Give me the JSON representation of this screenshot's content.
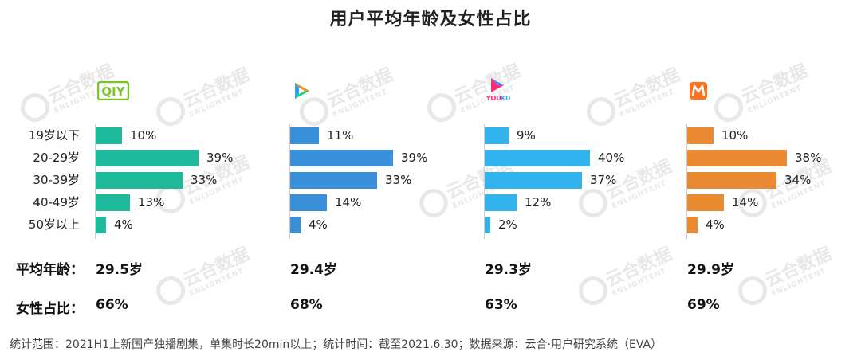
{
  "title": "用户平均年龄及女性占比",
  "watermark": {
    "cn": "云合数据",
    "en": "ENLIGHTENT"
  },
  "categories": [
    "19岁以下",
    "20-29岁",
    "30-39岁",
    "40-49岁",
    "50岁以上"
  ],
  "platforms": [
    {
      "logo_icon": "iqiyi-logo-icon",
      "logo_text": "QIY",
      "color": "#1db99a",
      "values": [
        10,
        39,
        33,
        13,
        4
      ],
      "labels": [
        "10%",
        "39%",
        "33%",
        "13%",
        "4%"
      ],
      "avg_age": "29.5岁",
      "female_ratio": "66%"
    },
    {
      "logo_icon": "tencent-video-logo-icon",
      "logo_text": "",
      "color": "#3a8fd9",
      "values": [
        11,
        39,
        33,
        14,
        4
      ],
      "labels": [
        "11%",
        "39%",
        "33%",
        "14%",
        "4%"
      ],
      "avg_age": "29.4岁",
      "female_ratio": "68%"
    },
    {
      "logo_icon": "youku-logo-icon",
      "logo_text": "YOUKU",
      "color": "#33b3ee",
      "values": [
        9,
        40,
        37,
        12,
        2
      ],
      "labels": [
        "9%",
        "40%",
        "37%",
        "12%",
        "2%"
      ],
      "avg_age": "29.3岁",
      "female_ratio": "63%"
    },
    {
      "logo_icon": "mango-tv-logo-icon",
      "logo_text": "",
      "color": "#ea8a33",
      "values": [
        10,
        38,
        34,
        14,
        4
      ],
      "labels": [
        "10%",
        "38%",
        "34%",
        "14%",
        "4%"
      ],
      "avg_age": "29.9岁",
      "female_ratio": "69%"
    }
  ],
  "summary": {
    "avg_age_label": "平均年龄：",
    "female_label": "女性占比："
  },
  "footer": "统计范围：2021H1上新国产独播剧集，单集时长20min以上；统计时间：截至2021.6.30；数据来源：云合·用户研究系统（EVA）",
  "chart_data": [
    {
      "type": "bar",
      "orientation": "horizontal",
      "categories": [
        "19岁以下",
        "20-29岁",
        "30-39岁",
        "40-49岁",
        "50岁以上"
      ],
      "values": [
        10,
        39,
        33,
        13,
        4
      ],
      "unit": "%"
    },
    {
      "type": "bar",
      "orientation": "horizontal",
      "categories": [
        "19岁以下",
        "20-29岁",
        "30-39岁",
        "40-49岁",
        "50岁以上"
      ],
      "values": [
        11,
        39,
        33,
        14,
        4
      ],
      "unit": "%"
    },
    {
      "type": "bar",
      "orientation": "horizontal",
      "categories": [
        "19岁以下",
        "20-29岁",
        "30-39岁",
        "40-49岁",
        "50岁以上"
      ],
      "values": [
        9,
        40,
        37,
        12,
        2
      ],
      "unit": "%"
    },
    {
      "type": "bar",
      "orientation": "horizontal",
      "categories": [
        "19岁以下",
        "20-29岁",
        "30-39岁",
        "40-49岁",
        "50岁以上"
      ],
      "values": [
        10,
        38,
        34,
        14,
        4
      ],
      "unit": "%"
    }
  ]
}
